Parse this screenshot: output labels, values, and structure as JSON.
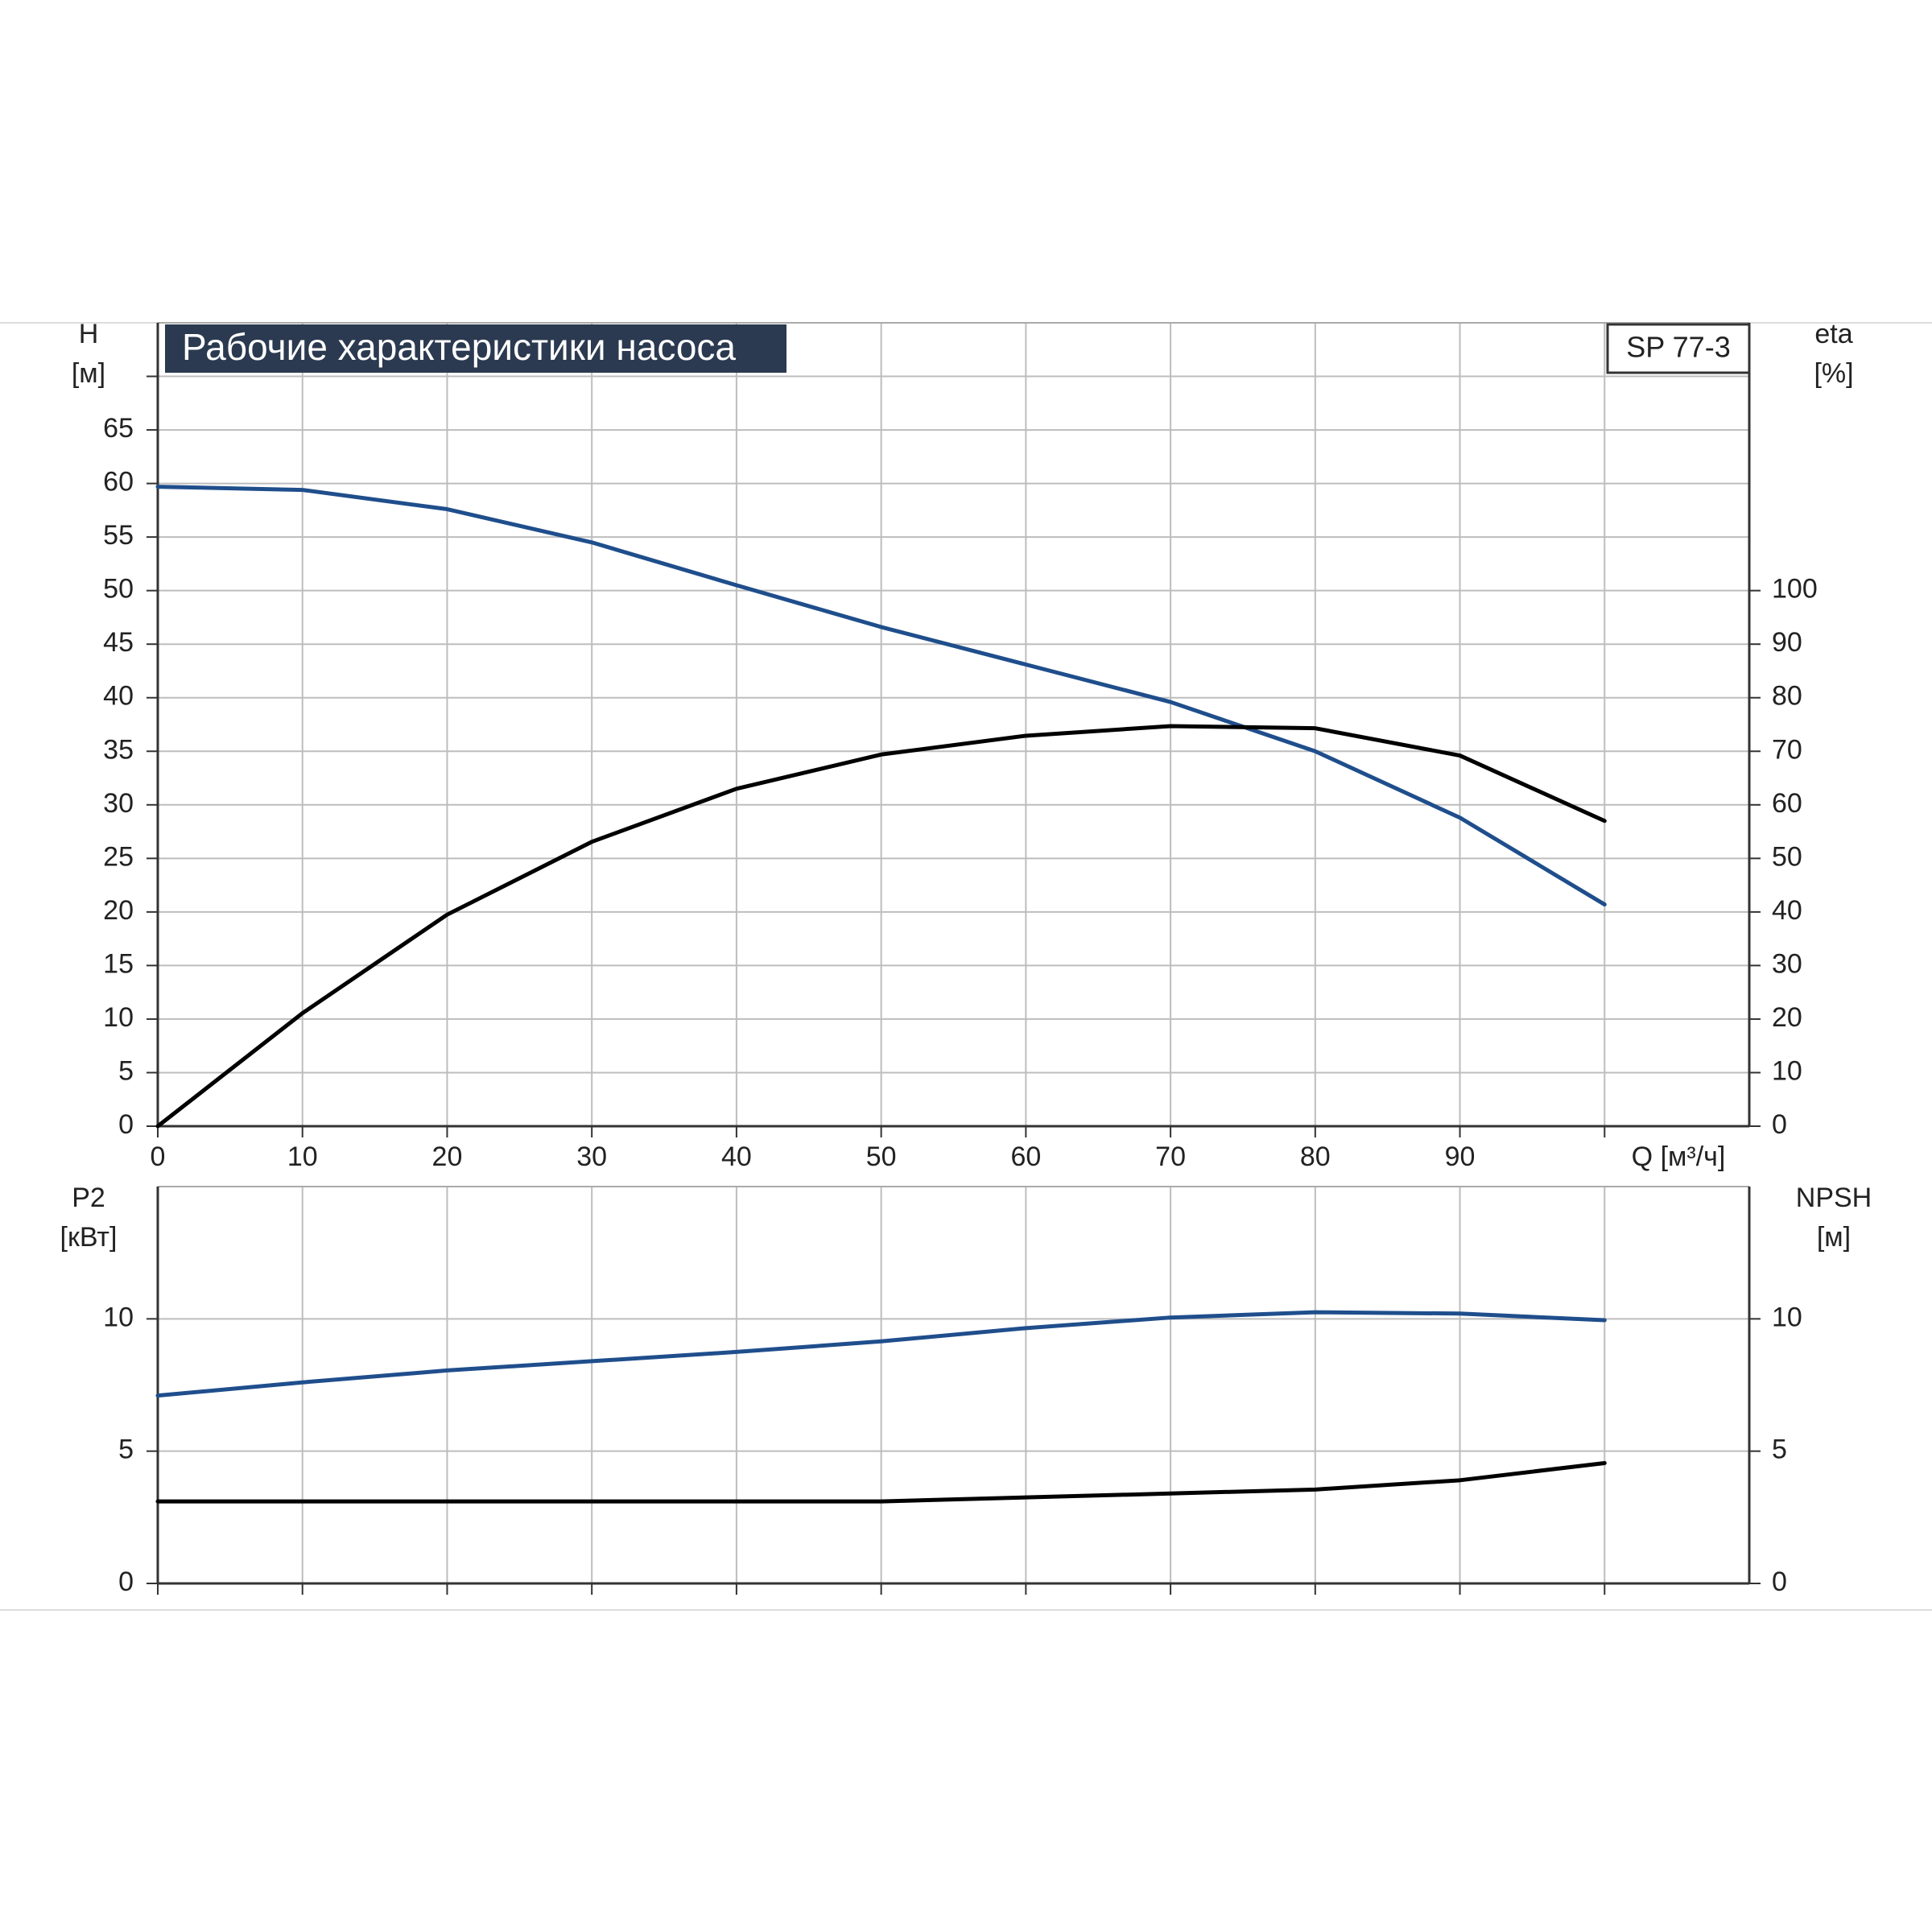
{
  "chart_data": [
    {
      "type": "line",
      "title": "Рабочие характеристики насоса",
      "label": "SP 77-3",
      "ylabel": [
        "H",
        "[м]"
      ],
      "y2label": [
        "eta",
        "[%]"
      ],
      "xlabel": "Q [м³/ч]",
      "x": [
        0,
        10,
        20,
        30,
        40,
        50,
        60,
        70,
        80,
        90,
        100
      ],
      "xlim": [
        0,
        110
      ],
      "xticks": [
        0,
        10,
        20,
        30,
        40,
        50,
        60,
        70,
        80,
        90,
        {
          "value": 100,
          "label": null
        }
      ],
      "ylim": [
        0,
        75
      ],
      "yticks": [
        0,
        5,
        10,
        15,
        20,
        25,
        30,
        35,
        40,
        45,
        50,
        55,
        60,
        65,
        {
          "value": 70,
          "label": null
        }
      ],
      "y2lim": [
        0,
        150
      ],
      "y2ticks": [
        0,
        10,
        20,
        30,
        40,
        50,
        60,
        70,
        80,
        90,
        100
      ],
      "grid": true,
      "series": [
        {
          "color": "#1f4e8c",
          "values": [
            59.7,
            59.4,
            57.6,
            54.5,
            50.5,
            46.6,
            43.1,
            39.6,
            35.0,
            28.8,
            20.7
          ]
        },
        {
          "color": "#000000",
          "axis": "y2",
          "values": [
            0,
            21.1,
            39.5,
            53.1,
            63,
            69.4,
            72.9,
            74.7,
            74.3,
            69.2,
            57
          ]
        }
      ]
    },
    {
      "type": "line",
      "ylabel": [
        "P2",
        "[кВт]"
      ],
      "y2label": [
        "NPSH",
        "[м]"
      ],
      "x": [
        0,
        10,
        20,
        30,
        40,
        50,
        60,
        70,
        80,
        90,
        100
      ],
      "xlim": [
        0,
        110
      ],
      "xticks": [
        {
          "value": 0,
          "label": null
        },
        {
          "value": 10,
          "label": null
        },
        {
          "value": 20,
          "label": null
        },
        {
          "value": 30,
          "label": null
        },
        {
          "value": 40,
          "label": null
        },
        {
          "value": 50,
          "label": null
        },
        {
          "value": 60,
          "label": null
        },
        {
          "value": 70,
          "label": null
        },
        {
          "value": 80,
          "label": null
        },
        {
          "value": 90,
          "label": null
        },
        {
          "value": 100,
          "label": null
        }
      ],
      "ylim": [
        0,
        15
      ],
      "yticks": [
        0,
        5,
        10
      ],
      "y2lim": [
        0,
        15
      ],
      "y2ticks": [
        0,
        5,
        10
      ],
      "grid": true,
      "series": [
        {
          "color": "#1f4e8c",
          "values": [
            7.1,
            7.6,
            8.05,
            8.4,
            8.75,
            9.15,
            9.65,
            10.05,
            10.25,
            10.2,
            9.95
          ]
        },
        {
          "color": "#000000",
          "axis": "y2",
          "values": [
            3.1,
            3.1,
            3.1,
            3.1,
            3.1,
            3.1,
            3.25,
            3.4,
            3.55,
            3.9,
            4.55
          ]
        }
      ]
    }
  ]
}
